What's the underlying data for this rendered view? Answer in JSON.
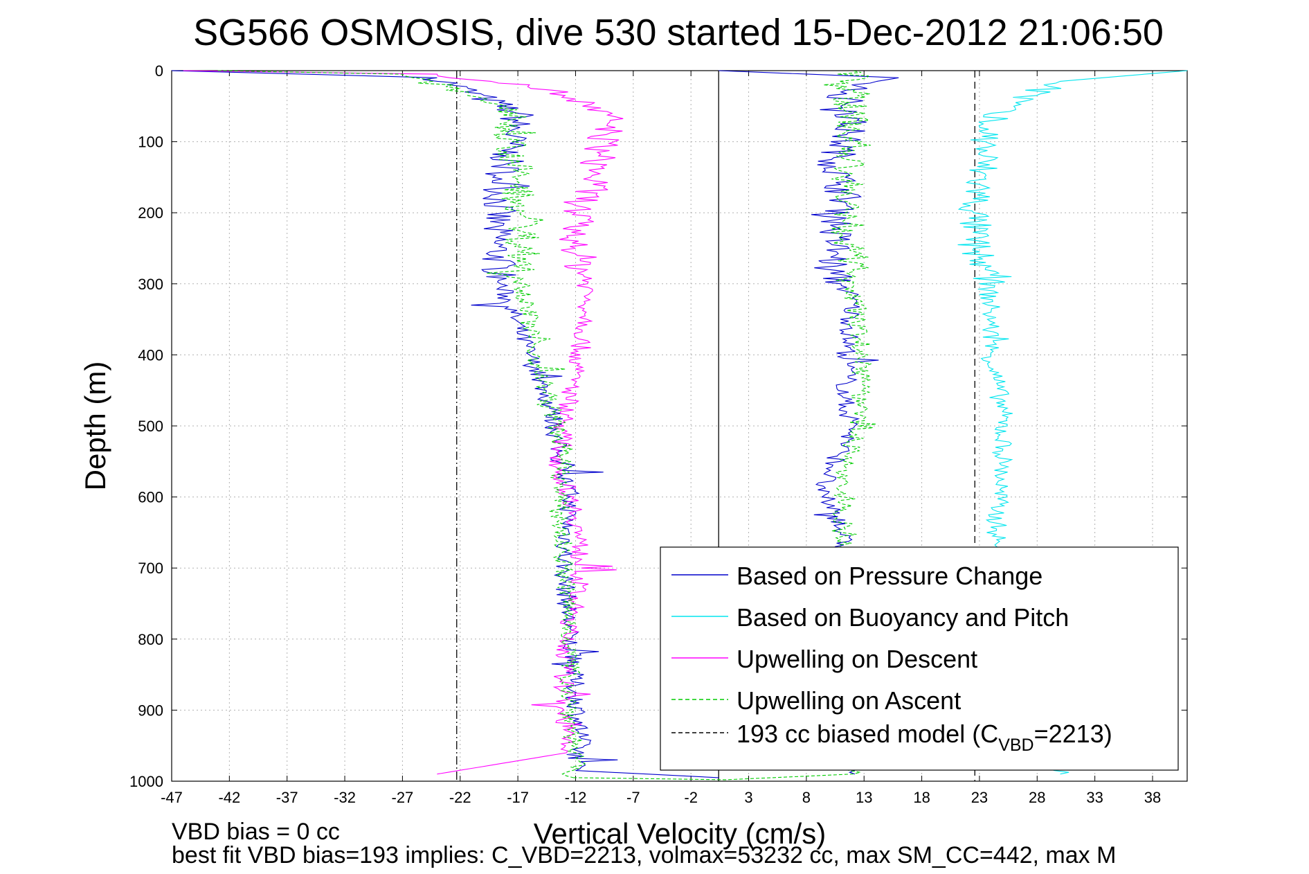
{
  "chart_data": {
    "type": "line",
    "title": "SG566 OSMOSIS, dive 530 started 15-Dec-2012 21:06:50",
    "xlabel": "Vertical Velocity (cm/s)",
    "ylabel": "Depth (m)",
    "xlim": [
      -47,
      41
    ],
    "ylim": [
      0,
      1000
    ],
    "y_reversed": true,
    "grid": true,
    "legend_position": "bottom-right",
    "xticks": [
      -47,
      -42,
      -37,
      -32,
      -27,
      -22,
      -17,
      -12,
      -7,
      -2,
      3,
      8,
      13,
      18,
      23,
      28,
      33,
      38
    ],
    "yticks": [
      0,
      100,
      200,
      300,
      400,
      500,
      600,
      700,
      800,
      900,
      1000
    ],
    "reference_lines": [
      {
        "x": -22.3,
        "style": "dash-dot",
        "color": "#000000"
      },
      {
        "x": 0.4,
        "style": "solid",
        "color": "#000000"
      },
      {
        "x": 22.6,
        "style": "dashed",
        "color": "#000000"
      }
    ],
    "series": [
      {
        "name": "Based on Pressure Change",
        "color": "#0000cc",
        "style": "solid",
        "branches": [
          {
            "x": [
              -47,
              -24,
              -17,
              -18,
              -19,
              -18.5,
              -16,
              -14,
              -13.5,
              -12.5,
              -13,
              -12.5,
              -12,
              -11.5,
              -12,
              0.4
            ],
            "y": [
              0,
              10,
              60,
              120,
              220,
              300,
              400,
              480,
              540,
              600,
              700,
              800,
              880,
              940,
              985,
              995
            ]
          },
          {
            "x": 0.4,
            "y": 0
          },
          {
            "x": [
              0.4,
              16,
              11,
              12,
              11.5,
              10.5,
              11,
              11.5,
              10.5,
              10.5,
              10,
              11,
              12,
              11.8,
              11.5,
              11.6,
              11.2,
              11.5,
              12.2,
              10.8,
              10,
              9,
              10.5,
              11,
              11.5,
              12,
              11.8,
              12.2
            ],
            "y": [
              0,
              10,
              30,
              60,
              90,
              130,
              160,
              190,
              220,
              260,
              280,
              300,
              320,
              360,
              400,
              430,
              460,
              480,
              500,
              540,
              570,
              590,
              620,
              650,
              700,
              800,
              900,
              990
            ]
          }
        ]
      },
      {
        "name": "Based on Buoyancy and Pitch",
        "color": "#00e5ee",
        "style": "solid",
        "branches": [
          {
            "x": [
              41,
              30,
              24,
              23.5,
              23,
              22.5,
              22.5,
              23.5,
              24,
              24,
              24.5,
              25,
              25,
              24.5,
              24.5,
              25,
              24.8,
              30
            ],
            "y": [
              0,
              15,
              60,
              100,
              160,
              200,
              250,
              280,
              340,
              400,
              440,
              480,
              560,
              620,
              660,
              700,
              900,
              990
            ]
          }
        ]
      },
      {
        "name": "Upwelling on Descent",
        "color": "#ff00ff",
        "style": "solid",
        "branches": [
          {
            "x": [
              -46,
              -24,
              -16,
              -12,
              -9,
              -10,
              -10.5,
              -12,
              -12,
              -11,
              -11,
              -12,
              -13,
              -13.5,
              -12,
              -11.5,
              -12.5,
              -13,
              -13,
              -12.8,
              -24
            ],
            "y": [
              0,
              5,
              20,
              40,
              70,
              120,
              160,
              200,
              250,
              300,
              350,
              420,
              500,
              560,
              620,
              700,
              780,
              840,
              900,
              960,
              990
            ]
          }
        ]
      },
      {
        "name": "Upwelling on Ascent",
        "color": "#00cc00",
        "style": "dashed",
        "branches": [
          {
            "x": [
              -43,
              -27,
              -18,
              -17.5,
              -17,
              -16.5,
              -16.5,
              -15.5,
              -14,
              -13,
              -13.5,
              -13,
              -12.5,
              -12.5,
              -12,
              -12.2
            ],
            "y": [
              0,
              5,
              50,
              100,
              160,
              220,
              300,
              400,
              480,
              540,
              600,
              700,
              800,
              900,
              960,
              995
            ]
          },
          {
            "x": [
              -12.2,
              1,
              12,
              11,
              11.2,
              11,
              11.5,
              11,
              11.2,
              11.5,
              12.5,
              12.8,
              12.7,
              12,
              11.5,
              12
            ],
            "y": [
              995,
              998,
              990,
              960,
              900,
              800,
              700,
              650,
              600,
              560,
              500,
              440,
              380,
              300,
              200,
              0
            ]
          }
        ]
      },
      {
        "name": "193 cc biased model (C",
        "name_sub": "VBD",
        "name_tail": "=2213)",
        "color": "#000000",
        "style": "dashed",
        "branches": []
      }
    ],
    "annotations": [
      "VBD bias = 0 cc",
      "best fit VBD bias=193 implies: C_VBD=2213, volmax=53232 cc, max SM_CC=442, max M"
    ]
  }
}
